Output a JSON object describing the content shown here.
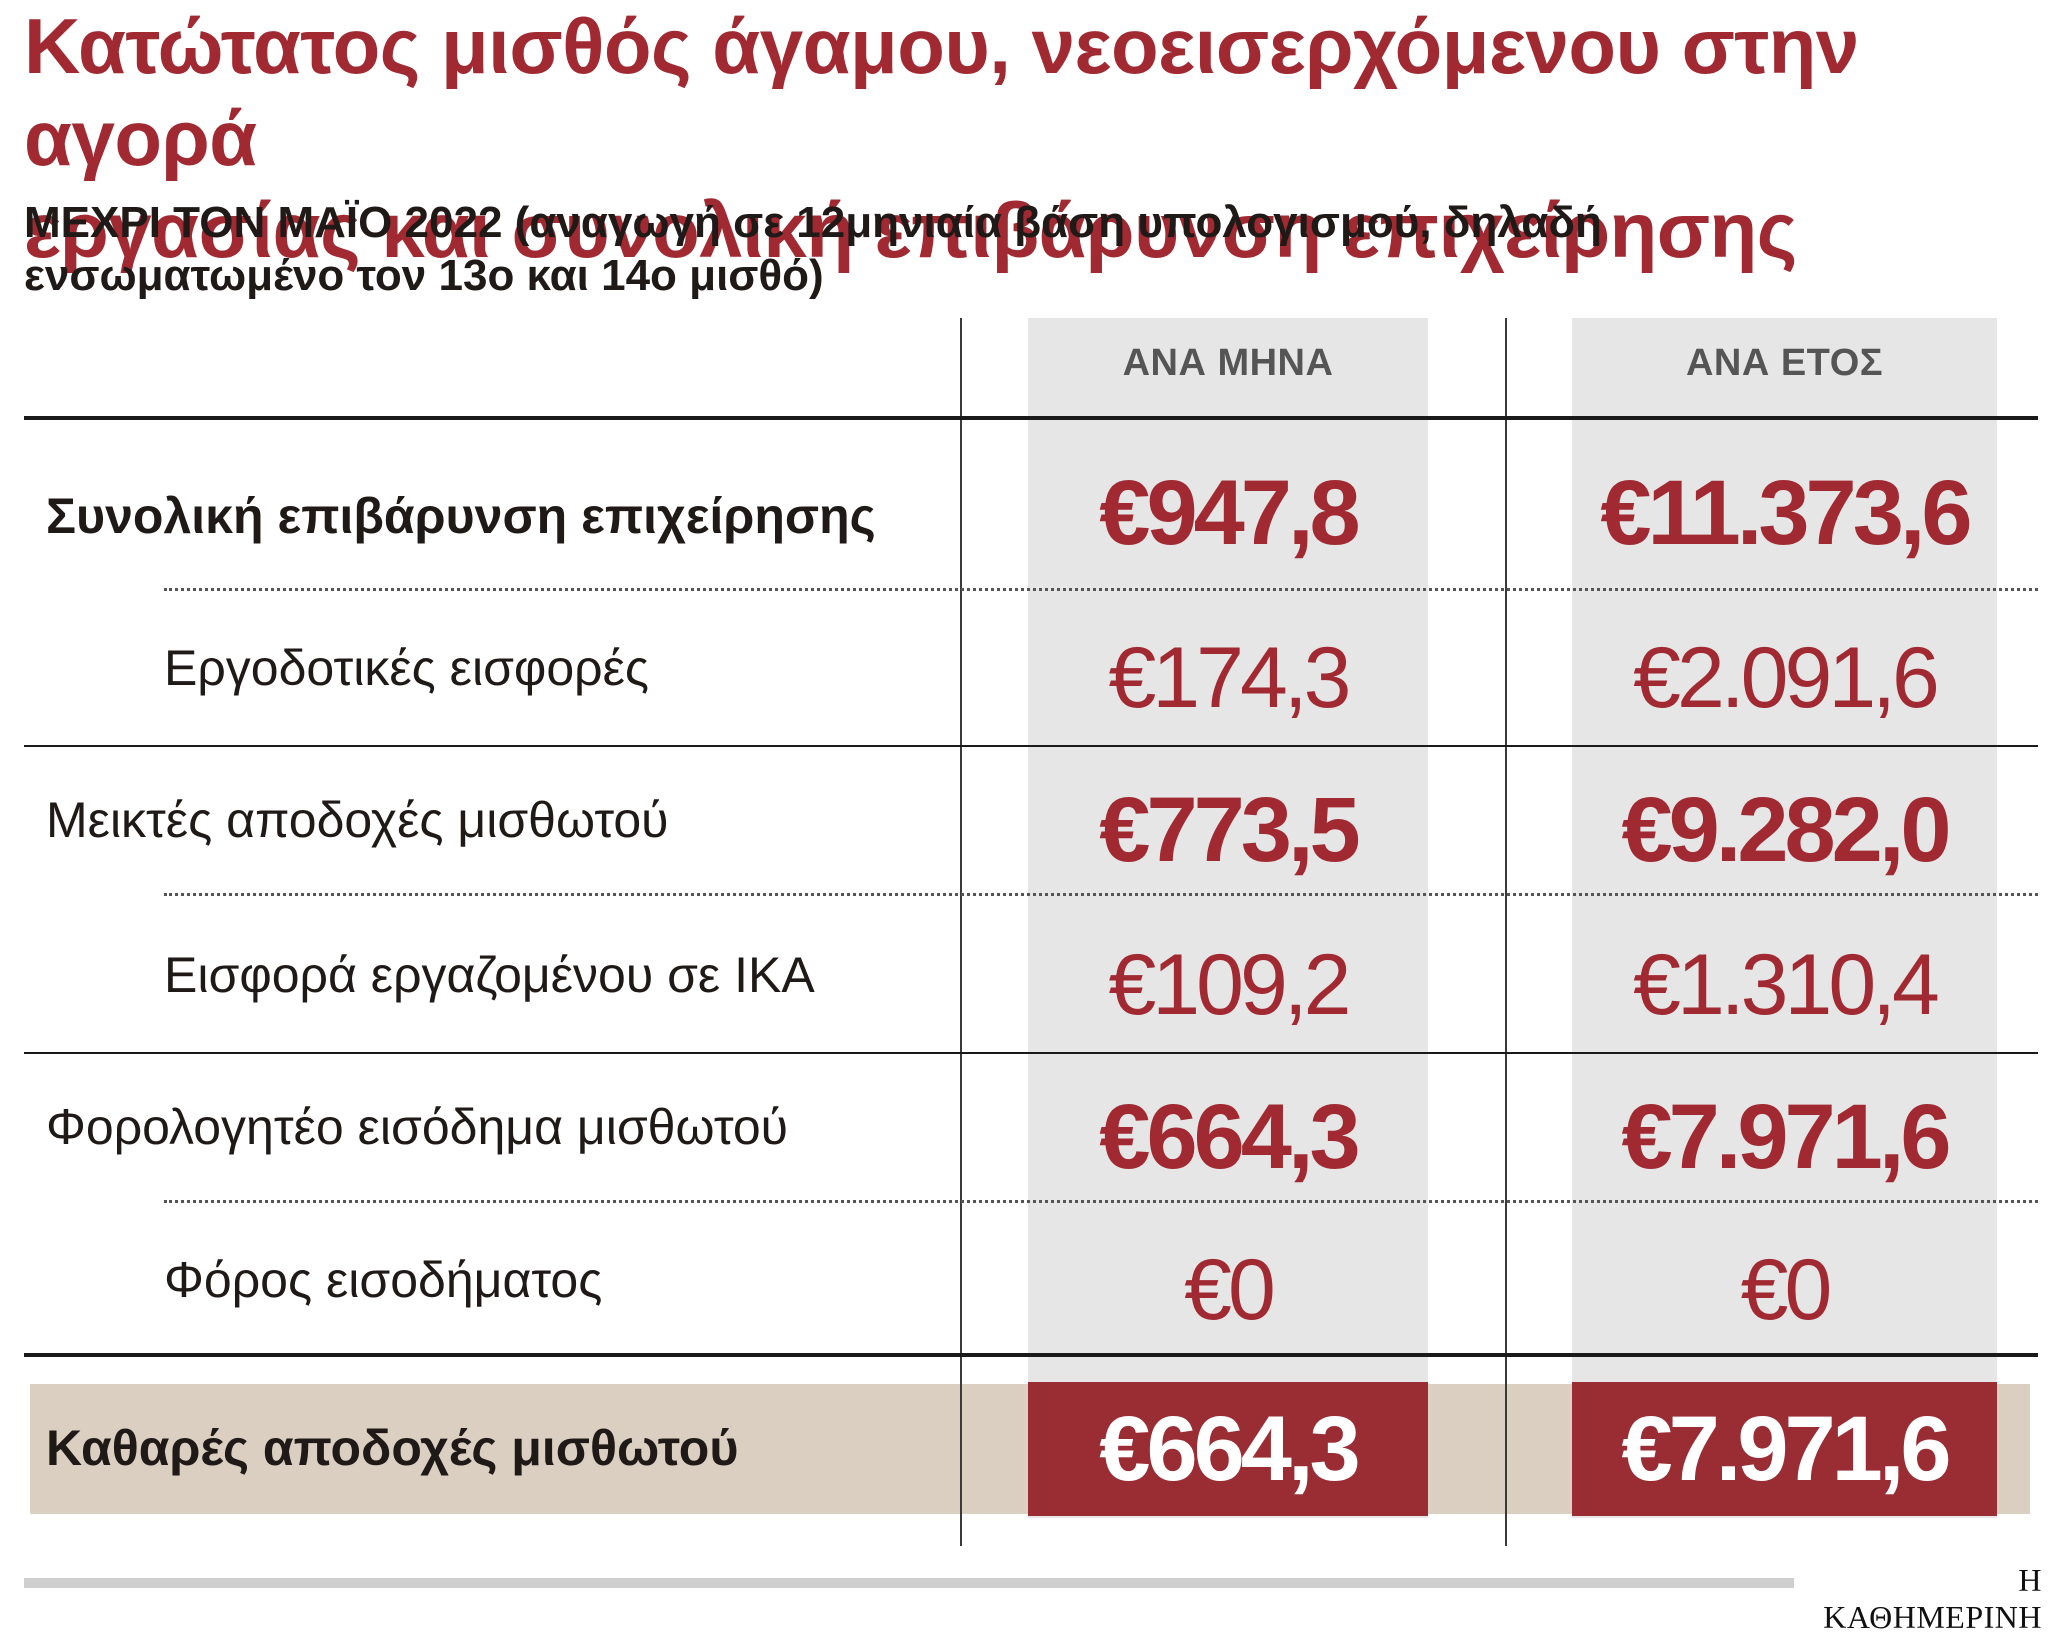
{
  "title": "Κατώτατος μισθός άγαμου, νεοεισερχόμενου στην αγορά\nεργασίας και συνολική επιβάρυνση επιχείρησης",
  "subtitle": "ΜΕΧΡΙ ΤΟΝ ΜΑΪΟ 2022 (αναγωγή σε 12μηνιαία βάση υπολογισμού, δηλαδή ενσωματωμένο τον 13ο και 14ο μισθό)",
  "columns": {
    "monthly": "ΑΝΑ ΜΗΝΑ",
    "yearly": "ΑΝΑ ΕΤΟΣ"
  },
  "rows": [
    {
      "label": "Συνολική επιβάρυνση επιχείρησης",
      "monthly": "€947,8",
      "yearly": "€11.373,6"
    },
    {
      "label": "Εργοδοτικές εισφορές",
      "monthly": "€174,3",
      "yearly": "€2.091,6"
    },
    {
      "label": "Μεικτές αποδοχές μισθωτού",
      "monthly": "€773,5",
      "yearly": "€9.282,0"
    },
    {
      "label": "Εισφορά εργαζομένου σε ΙΚΑ",
      "monthly": "€109,2",
      "yearly": "€1.310,4"
    },
    {
      "label": "Φορολογητέο εισόδημα μισθωτού",
      "monthly": "€664,3",
      "yearly": "€7.971,6"
    },
    {
      "label": "Φόρος εισοδήματος",
      "monthly": "€0",
      "yearly": "€0"
    }
  ],
  "net": {
    "label": "Καθαρές αποδοχές μισθωτού",
    "monthly": "€664,3",
    "yearly": "€7.971,6"
  },
  "source": "Η ΚΑΘΗΜΕΡΙΝΗ",
  "colors": {
    "accent": "#a12a32",
    "net_box": "#9a2c34",
    "net_bar": "#dbcfc1",
    "column_bg": "#e6e6e7"
  }
}
